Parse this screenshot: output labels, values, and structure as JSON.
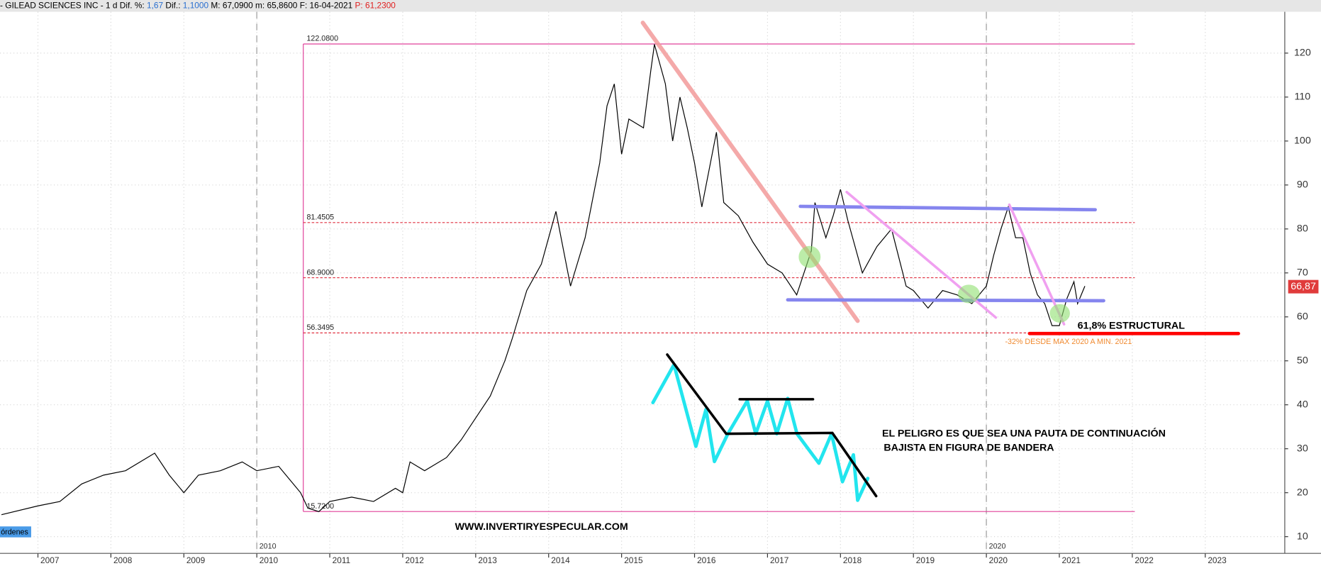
{
  "header": [
    "- GILEAD SCIENCES INC -  1 d",
    "Dif. %:",
    "1,67",
    "Dif.:",
    "1,1000",
    "M: 67,0900",
    "m: 65,8600",
    "F: 16-04-2021",
    "P: 61,2300"
  ],
  "chart_data": {
    "type": "line",
    "color": "#000000",
    "x": [
      2006.5,
      2007.0,
      2007.3,
      2007.6,
      2007.9,
      2008.2,
      2008.5,
      2008.6,
      2008.8,
      2009.0,
      2009.2,
      2009.5,
      2009.8,
      2010.0,
      2010.3,
      2010.5,
      2010.6,
      2010.7,
      2010.85,
      2011.0,
      2011.3,
      2011.6,
      2011.9,
      2012.0,
      2012.1,
      2012.3,
      2012.6,
      2012.8,
      2013.0,
      2013.2,
      2013.4,
      2013.5,
      2013.7,
      2013.9,
      2014.0,
      2014.1,
      2014.3,
      2014.5,
      2014.7,
      2014.8,
      2014.9,
      2015.0,
      2015.1,
      2015.3,
      2015.4,
      2015.45,
      2015.6,
      2015.7,
      2015.8,
      2015.9,
      2016.0,
      2016.1,
      2016.3,
      2016.4,
      2016.6,
      2016.8,
      2017.0,
      2017.2,
      2017.4,
      2017.6,
      2017.65,
      2017.8,
      2017.9,
      2018.0,
      2018.1,
      2018.3,
      2018.5,
      2018.7,
      2018.9,
      2019.0,
      2019.2,
      2019.4,
      2019.6,
      2019.8,
      2020.0,
      2020.1,
      2020.2,
      2020.3,
      2020.4,
      2020.5,
      2020.6,
      2020.7,
      2020.8,
      2020.9,
      2021.0,
      2021.1,
      2021.2,
      2021.25,
      2021.35
    ],
    "values": [
      15,
      17,
      18,
      22,
      24,
      25,
      28,
      29,
      24,
      20,
      24,
      25,
      27,
      25,
      26,
      22,
      20,
      16.5,
      15.7,
      18,
      19,
      18,
      21,
      20,
      27,
      25,
      28,
      32,
      37,
      42,
      50,
      55,
      66,
      72,
      78,
      84,
      67,
      78,
      95,
      108,
      113,
      97,
      105,
      103,
      116,
      122,
      113,
      100,
      110,
      103,
      95,
      85,
      102,
      86,
      83,
      77,
      72,
      70,
      65,
      75,
      86,
      78,
      83,
      89,
      82,
      70,
      76,
      80,
      67,
      66,
      62,
      66,
      65,
      63,
      67,
      74,
      80,
      85,
      78,
      78,
      70,
      65,
      63,
      58,
      58,
      64,
      68,
      63,
      67
    ],
    "xlim": [
      2006.48,
      2024.09
    ],
    "xticks": [
      2007,
      2008,
      2009,
      2010,
      2011,
      2012,
      2013,
      2014,
      2015,
      2016,
      2017,
      2018,
      2019,
      2020,
      2021,
      2022,
      2023
    ],
    "ylim": [
      6.2,
      129.4
    ],
    "yticks": [
      10,
      20,
      30,
      40,
      50,
      60,
      70,
      80,
      90,
      100,
      110,
      120
    ],
    "grid": true,
    "period_markers": [
      2010,
      2020
    ],
    "fib_levels": [
      {
        "value": 122.08,
        "label": "122.0800"
      },
      {
        "value": 81.4505,
        "label": "81.4505"
      },
      {
        "value": 68.9,
        "label": "68.9000"
      },
      {
        "value": 56.3495,
        "label": "56.3495"
      },
      {
        "value": 15.72,
        "label": "15.7200"
      }
    ],
    "last_price": {
      "value": 66.87,
      "label": "66,87"
    },
    "annotations": [
      "61,8% ESTRUCTURAL",
      "-32% DESDE MAX 2020 A MIN. 2021",
      "EL PELIGRO ES QUE SEA UNA PAUTA DE  CONTINUACIÓN",
      "BAJISTA EN FIGURA DE BANDERA",
      "WWW.INVERTIRYESPECULAR.COM"
    ],
    "panel_label": "órdenes"
  }
}
